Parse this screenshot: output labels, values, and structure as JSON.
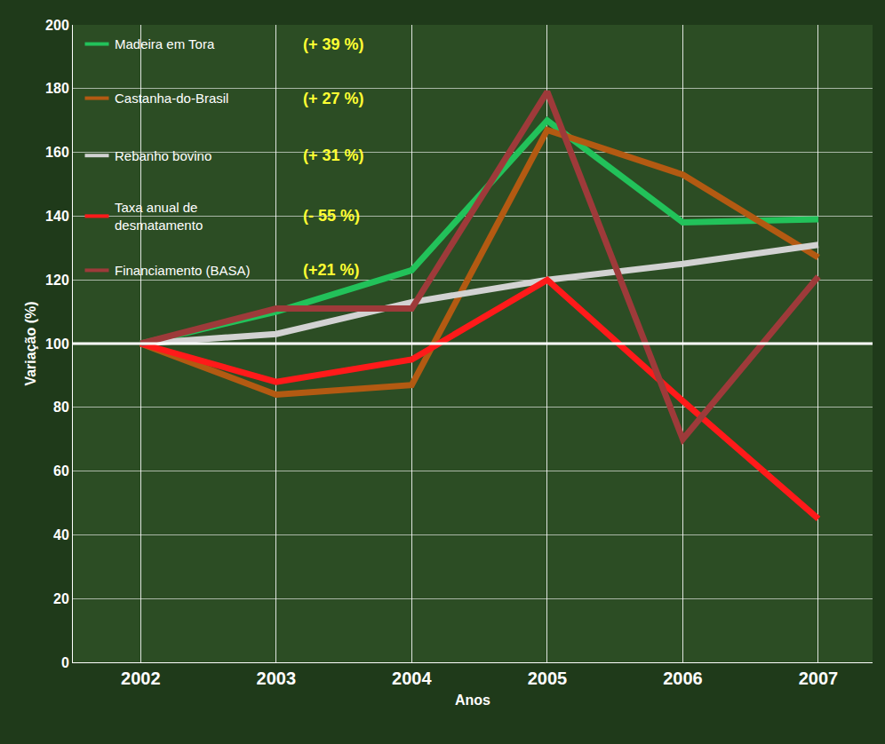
{
  "chart_data": {
    "type": "line",
    "x_label": "Anos",
    "y_label": "Variação (%)",
    "categories": [
      "2002",
      "2003",
      "2004",
      "2005",
      "2006",
      "2007"
    ],
    "series": [
      {
        "name": "Madeira em Tora",
        "color": "#22c25a",
        "values": [
          100,
          110,
          123,
          170,
          138,
          139
        ]
      },
      {
        "name": "Castanha-do-Brasil",
        "color": "#b35a12",
        "values": [
          100,
          84,
          87,
          167,
          153,
          127
        ]
      },
      {
        "name": "Rebanho bovino",
        "color": "#d2d2d2",
        "values": [
          100,
          103,
          113,
          120,
          125,
          131
        ]
      },
      {
        "name": "Taxa anual de desmatamento",
        "color": "#ff1a1a",
        "values": [
          100,
          88,
          95,
          120,
          82,
          45
        ]
      },
      {
        "name": "Financiamento (BASA)",
        "color": "#9e3a3a",
        "values": [
          100,
          111,
          111,
          179,
          70,
          121
        ]
      }
    ],
    "annotations": [
      "(+ 39 %)",
      "(+ 27 %)",
      "(+ 31 %)",
      "(- 55 %)",
      "(+21 %)"
    ],
    "ylim": [
      0,
      200
    ],
    "yticks": [
      0,
      20,
      40,
      60,
      80,
      100,
      120,
      140,
      160,
      180,
      200
    ],
    "grid": true,
    "legend": "top-left"
  }
}
